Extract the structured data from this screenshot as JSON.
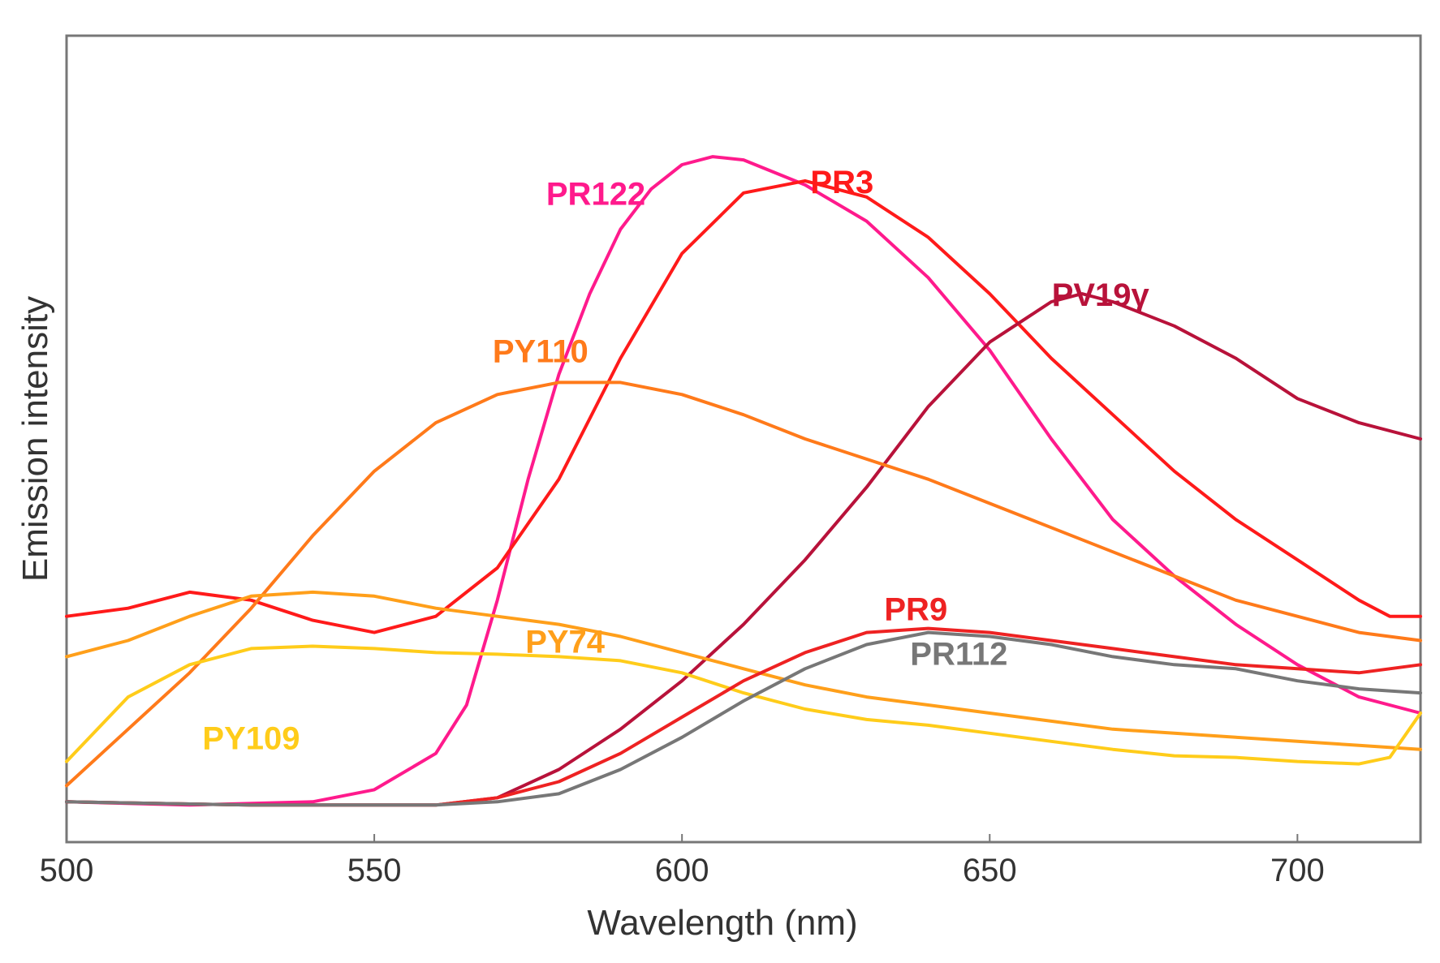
{
  "chart_data": {
    "type": "line",
    "title": "",
    "xlabel": "Wavelength  (nm)",
    "ylabel": "Emission intensity",
    "xlim": [
      500,
      720
    ],
    "ylim": [
      0,
      100
    ],
    "x_ticks": [
      {
        "value": 500,
        "label": "500"
      },
      {
        "value": 550,
        "label": "550"
      },
      {
        "value": 600,
        "label": "600"
      },
      {
        "value": 650,
        "label": "650"
      },
      {
        "value": 700,
        "label": "700"
      }
    ],
    "grid": false,
    "legend": "inline labels",
    "series": [
      {
        "name": "PR122",
        "color": "#ff1a8c",
        "label": {
          "text": "PR122",
          "x": 586,
          "y": 79
        },
        "points": [
          [
            500,
            5
          ],
          [
            520,
            4.6
          ],
          [
            540,
            5
          ],
          [
            550,
            6.5
          ],
          [
            560,
            11
          ],
          [
            565,
            17
          ],
          [
            570,
            30
          ],
          [
            575,
            45
          ],
          [
            580,
            58
          ],
          [
            585,
            68
          ],
          [
            590,
            76
          ],
          [
            595,
            81
          ],
          [
            600,
            84
          ],
          [
            605,
            85
          ],
          [
            610,
            84.6
          ],
          [
            620,
            81.5
          ],
          [
            630,
            77
          ],
          [
            640,
            70
          ],
          [
            650,
            61
          ],
          [
            660,
            50
          ],
          [
            670,
            40
          ],
          [
            680,
            33
          ],
          [
            690,
            27
          ],
          [
            700,
            22
          ],
          [
            710,
            18
          ],
          [
            720,
            16
          ]
        ]
      },
      {
        "name": "PR3",
        "color": "#ff1a1a",
        "label": {
          "text": "PR3",
          "x": 626,
          "y": 80.5
        },
        "points": [
          [
            500,
            28
          ],
          [
            510,
            29
          ],
          [
            520,
            31
          ],
          [
            530,
            30
          ],
          [
            540,
            27.5
          ],
          [
            550,
            26
          ],
          [
            560,
            28
          ],
          [
            570,
            34
          ],
          [
            580,
            45
          ],
          [
            590,
            60
          ],
          [
            600,
            73
          ],
          [
            610,
            80.5
          ],
          [
            620,
            82
          ],
          [
            630,
            80
          ],
          [
            640,
            75
          ],
          [
            650,
            68
          ],
          [
            660,
            60
          ],
          [
            670,
            53
          ],
          [
            680,
            46
          ],
          [
            690,
            40
          ],
          [
            700,
            35
          ],
          [
            710,
            30
          ],
          [
            715,
            28
          ],
          [
            720,
            28
          ]
        ]
      },
      {
        "name": "PV19γ",
        "color": "#b8123a",
        "label": {
          "text": "PV19γ",
          "x": 668,
          "y": 66.5
        },
        "points": [
          [
            500,
            5
          ],
          [
            530,
            4.6
          ],
          [
            560,
            4.6
          ],
          [
            570,
            5.5
          ],
          [
            580,
            9
          ],
          [
            590,
            14
          ],
          [
            600,
            20
          ],
          [
            610,
            27
          ],
          [
            620,
            35
          ],
          [
            630,
            44
          ],
          [
            640,
            54
          ],
          [
            650,
            62
          ],
          [
            660,
            67
          ],
          [
            665,
            68
          ],
          [
            670,
            67
          ],
          [
            680,
            64
          ],
          [
            690,
            60
          ],
          [
            700,
            55
          ],
          [
            710,
            52
          ],
          [
            720,
            50
          ]
        ]
      },
      {
        "name": "PY110",
        "color": "#ff7a1a",
        "label": {
          "text": "PY110",
          "x": 577,
          "y": 59.5
        },
        "points": [
          [
            500,
            7
          ],
          [
            510,
            14
          ],
          [
            520,
            21
          ],
          [
            530,
            29
          ],
          [
            540,
            38
          ],
          [
            550,
            46
          ],
          [
            560,
            52
          ],
          [
            570,
            55.5
          ],
          [
            580,
            57
          ],
          [
            590,
            57
          ],
          [
            600,
            55.5
          ],
          [
            610,
            53
          ],
          [
            620,
            50
          ],
          [
            630,
            47.5
          ],
          [
            640,
            45
          ],
          [
            650,
            42
          ],
          [
            660,
            39
          ],
          [
            670,
            36
          ],
          [
            680,
            33
          ],
          [
            690,
            30
          ],
          [
            700,
            28
          ],
          [
            710,
            26
          ],
          [
            720,
            25
          ]
        ]
      },
      {
        "name": "PY74",
        "color": "#ff9f1a",
        "label": {
          "text": "PY74",
          "x": 581,
          "y": 23.5
        },
        "points": [
          [
            500,
            23
          ],
          [
            510,
            25
          ],
          [
            520,
            28
          ],
          [
            530,
            30.5
          ],
          [
            540,
            31
          ],
          [
            550,
            30.5
          ],
          [
            560,
            29
          ],
          [
            570,
            28
          ],
          [
            580,
            27
          ],
          [
            590,
            25.5
          ],
          [
            600,
            23.5
          ],
          [
            610,
            21.5
          ],
          [
            620,
            19.5
          ],
          [
            630,
            18
          ],
          [
            640,
            17
          ],
          [
            650,
            16
          ],
          [
            660,
            15
          ],
          [
            670,
            14
          ],
          [
            680,
            13.5
          ],
          [
            690,
            13
          ],
          [
            700,
            12.5
          ],
          [
            710,
            12
          ],
          [
            720,
            11.5
          ]
        ]
      },
      {
        "name": "PY109",
        "color": "#ffcc1a",
        "label": {
          "text": "PY109",
          "x": 530,
          "y": 11.5
        },
        "points": [
          [
            500,
            10
          ],
          [
            510,
            18
          ],
          [
            520,
            22
          ],
          [
            530,
            24
          ],
          [
            540,
            24.3
          ],
          [
            550,
            24
          ],
          [
            560,
            23.5
          ],
          [
            570,
            23.3
          ],
          [
            580,
            23
          ],
          [
            590,
            22.5
          ],
          [
            600,
            21
          ],
          [
            610,
            18.5
          ],
          [
            620,
            16.5
          ],
          [
            630,
            15.2
          ],
          [
            640,
            14.5
          ],
          [
            650,
            13.5
          ],
          [
            660,
            12.5
          ],
          [
            670,
            11.5
          ],
          [
            680,
            10.7
          ],
          [
            690,
            10.5
          ],
          [
            700,
            10
          ],
          [
            710,
            9.7
          ],
          [
            715,
            10.5
          ],
          [
            720,
            16
          ]
        ]
      },
      {
        "name": "PR9",
        "color": "#ee2222",
        "label": {
          "text": "PR9",
          "x": 638,
          "y": 27.5
        },
        "points": [
          [
            500,
            5
          ],
          [
            530,
            4.6
          ],
          [
            560,
            4.6
          ],
          [
            570,
            5.5
          ],
          [
            580,
            7.5
          ],
          [
            590,
            11
          ],
          [
            600,
            15.5
          ],
          [
            610,
            20
          ],
          [
            620,
            23.5
          ],
          [
            630,
            26
          ],
          [
            640,
            26.5
          ],
          [
            650,
            26
          ],
          [
            660,
            25
          ],
          [
            670,
            24
          ],
          [
            680,
            23
          ],
          [
            690,
            22
          ],
          [
            700,
            21.5
          ],
          [
            710,
            21
          ],
          [
            720,
            22
          ]
        ]
      },
      {
        "name": "PR112",
        "color": "#777777",
        "label": {
          "text": "PR112",
          "x": 645,
          "y": 22
        },
        "points": [
          [
            500,
            5
          ],
          [
            530,
            4.6
          ],
          [
            560,
            4.6
          ],
          [
            570,
            5
          ],
          [
            580,
            6
          ],
          [
            590,
            9
          ],
          [
            600,
            13
          ],
          [
            610,
            17.5
          ],
          [
            620,
            21.5
          ],
          [
            630,
            24.5
          ],
          [
            640,
            26
          ],
          [
            650,
            25.5
          ],
          [
            660,
            24.5
          ],
          [
            670,
            23
          ],
          [
            680,
            22
          ],
          [
            690,
            21.5
          ],
          [
            700,
            20
          ],
          [
            710,
            19
          ],
          [
            720,
            18.5
          ]
        ]
      }
    ]
  }
}
